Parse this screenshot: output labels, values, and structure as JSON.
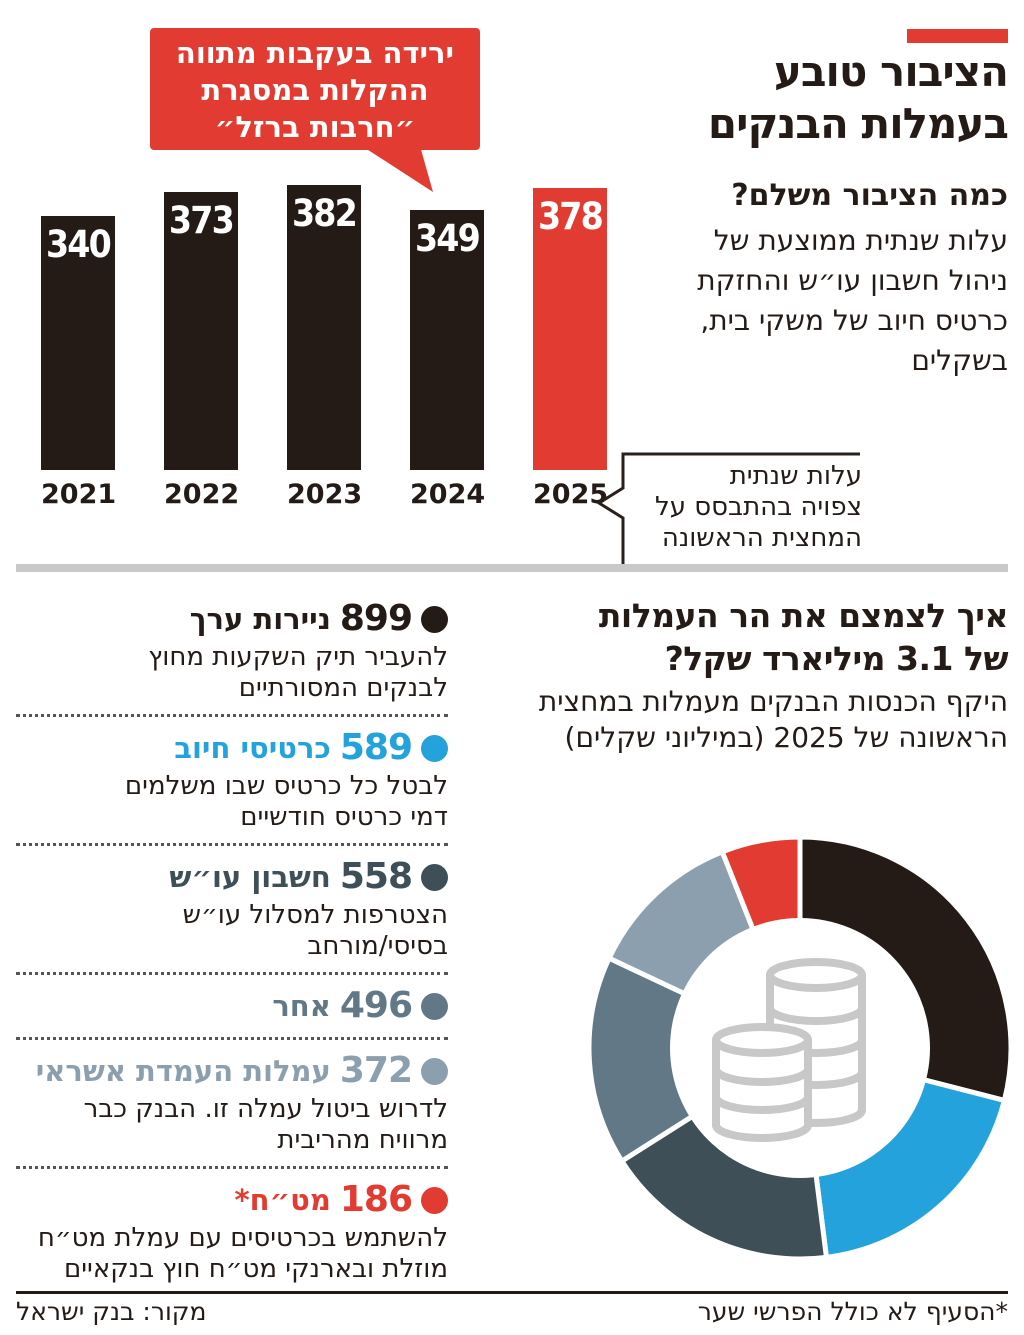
{
  "colors": {
    "dark": "#241a16",
    "red": "#e23b32",
    "blue": "#23a2dc",
    "slate_dark": "#3e4f58",
    "slate_mid": "#627886",
    "slate_light": "#8c9fae",
    "divider_gray": "#c9c9c9",
    "coins_gray": "#c8c8c8",
    "white": "#ffffff"
  },
  "header": {
    "title": "הציבור טובע\nבעמלות הבנקים"
  },
  "bar_section": {
    "question": "כמה הציבור משלם?",
    "description": "עלות שנתית ממוצעת של\nניהול חשבון עו״ש והחזקת\nכרטיס חיוב של משקי בית,\nבשקלים",
    "callout": "ירידה בעקבות מתווה\nההקלות במסגרת\n״חרבות ברזל״",
    "annotation_2025": "עלות שנתית\nצפויה בהתבסס על\nהמחצית הראשונה"
  },
  "fees_section": {
    "heading": "איך לצמצם את הר העמלות\nשל 3.1 מיליארד שקל?",
    "subtitle": "היקף הכנסות הבנקים מעמלות במחצית\nהראשונה של 2025 (במיליוני שקלים)",
    "items": [
      {
        "value": "899",
        "label": "ניירות ערך",
        "color": "#241a16",
        "note": "להעביר תיק השקעות מחוץ\nלבנקים המסורתיים"
      },
      {
        "value": "589",
        "label": "כרטיסי חיוב",
        "color": "#23a2dc",
        "note": "לבטל כל כרטיס שבו משלמים\nדמי כרטיס חודשיים"
      },
      {
        "value": "558",
        "label": "חשבון עו״ש",
        "color": "#3e4f58",
        "note": "הצטרפות למסלול עו״ש\nבסיסי/מורחב"
      },
      {
        "value": "496",
        "label": "אחר",
        "color": "#627886",
        "note": ""
      },
      {
        "value": "372",
        "label": "עמלות העמדת אשראי",
        "color": "#8c9fae",
        "note": "לדרוש ביטול עמלה זו. הבנק כבר\nמרוויח מהריבית"
      },
      {
        "value": "186",
        "label": "מט״ח*",
        "color": "#e23b32",
        "note": "להשתמש בכרטיסים עם עמלת מט״ח\nמוזלת ובארנקי מט״ח חוץ בנקאיים"
      }
    ]
  },
  "chart_data": [
    {
      "type": "bar",
      "title": "כמה הציבור משלם?",
      "subtitle": "עלות שנתית ממוצעת של ניהול חשבון עו״ש והחזקת כרטיס חיוב של משקי בית, בשקלים",
      "categories": [
        "2021",
        "2022",
        "2023",
        "2024",
        "2025"
      ],
      "values": [
        340,
        373,
        382,
        349,
        378
      ],
      "bar_colors": [
        "#241a16",
        "#241a16",
        "#241a16",
        "#241a16",
        "#e23b32"
      ],
      "value_label_color": "#ffffff",
      "ylim": [
        0,
        382
      ],
      "annotations": [
        {
          "target": "2024",
          "text": "ירידה בעקבות מתווה ההקלות במסגרת ״חרבות ברזל״"
        },
        {
          "target": "2025",
          "text": "עלות שנתית צפויה בהתבסס על המחצית הראשונה"
        }
      ]
    },
    {
      "type": "pie",
      "variant": "donut",
      "title": "איך לצמצם את הר העמלות של 3.1 מיליארד שקל?",
      "subtitle": "היקף הכנסות הבנקים מעמלות במחצית הראשונה של 2025 (במיליוני שקלים)",
      "labels": [
        "ניירות ערך",
        "כרטיסי חיוב",
        "חשבון עו״ש",
        "אחר",
        "עמלות העמדת אשראי",
        "מט״ח*"
      ],
      "values": [
        899,
        589,
        558,
        496,
        372,
        186
      ],
      "colors": [
        "#241a16",
        "#23a2dc",
        "#3e4f58",
        "#627886",
        "#8c9fae",
        "#e23b32"
      ],
      "total": 3100,
      "start": "top",
      "direction": "clockwise",
      "center_icon": "coins-icon"
    }
  ],
  "footer": {
    "source": "מקור: בנק ישראל",
    "footnote": "*הסעיף לא כולל הפרשי שער"
  }
}
